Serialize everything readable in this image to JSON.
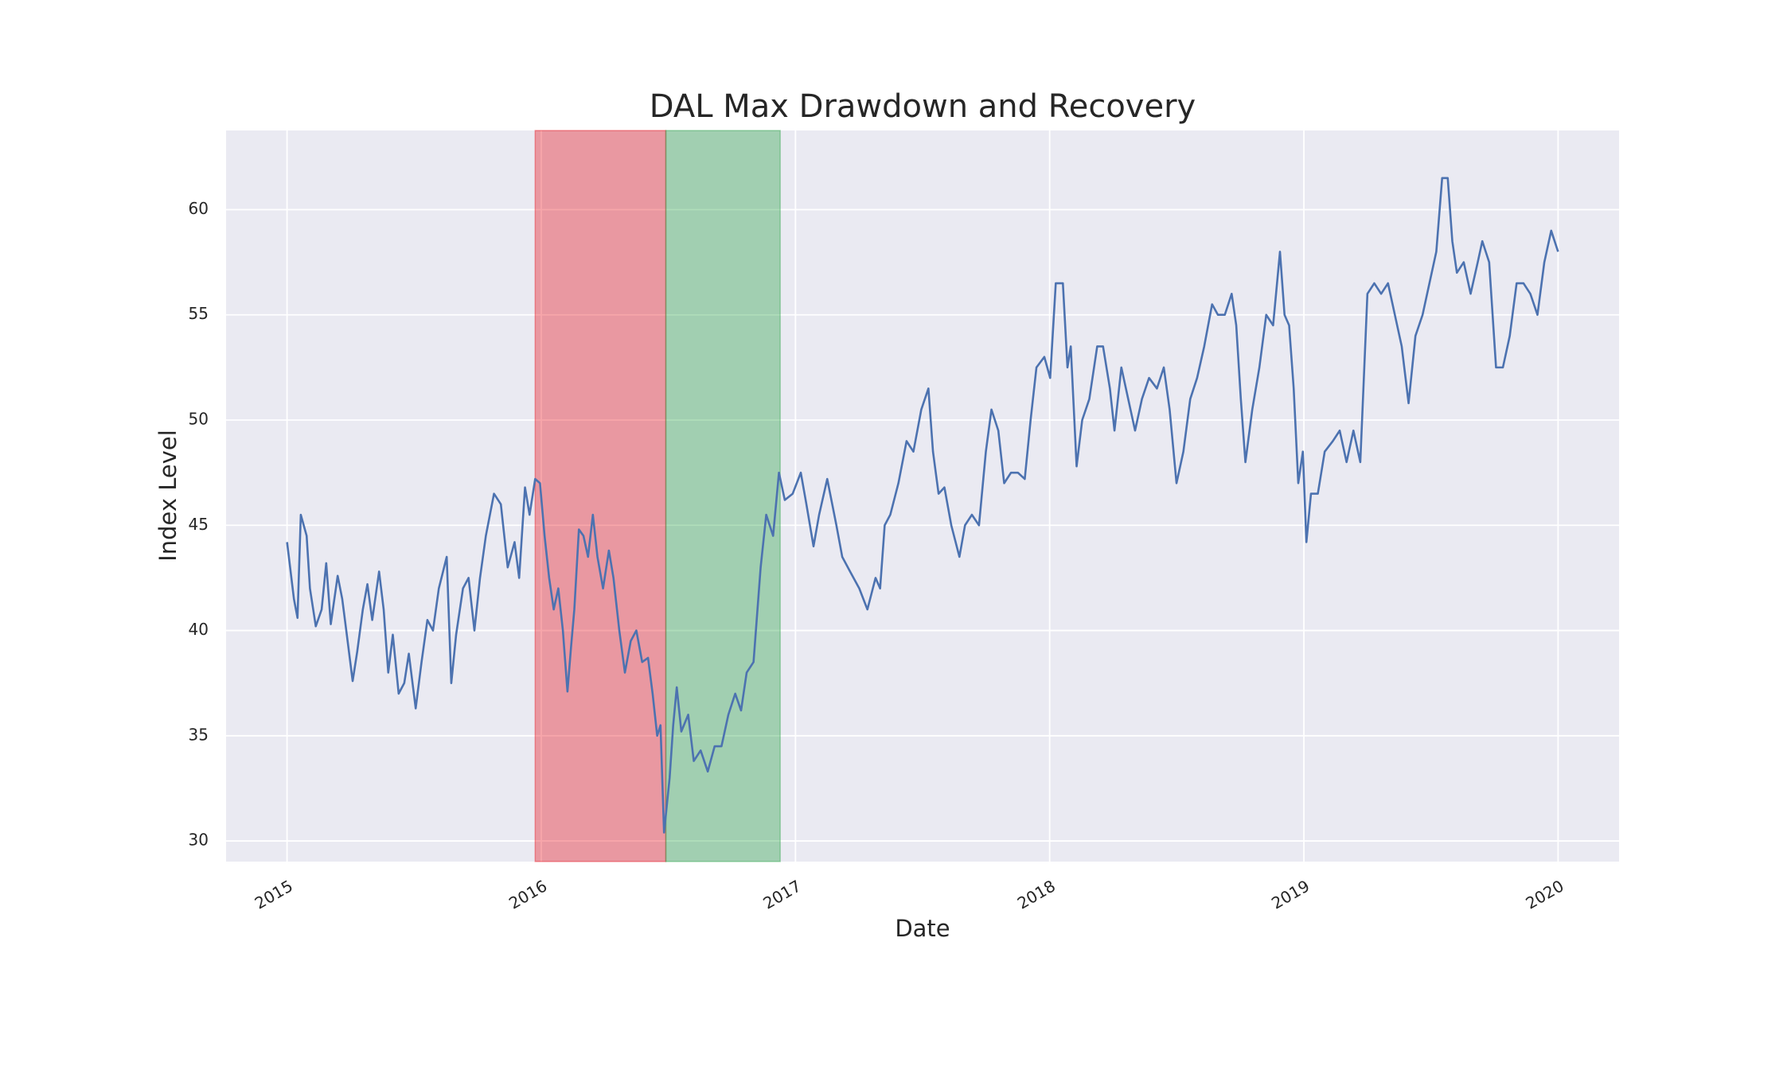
{
  "chart_data": {
    "type": "line",
    "title": "DAL Max Drawdown and Recovery",
    "xlabel": "Date",
    "ylabel": "Index Level",
    "x": [
      2015.0,
      2015.027,
      2015.041,
      2015.054,
      2015.077,
      2015.09,
      2015.113,
      2015.136,
      2015.154,
      2015.172,
      2015.199,
      2015.217,
      2015.235,
      2015.258,
      2015.276,
      2015.298,
      2015.316,
      2015.335,
      2015.362,
      2015.38,
      2015.398,
      2015.416,
      2015.439,
      2015.461,
      2015.479,
      2015.506,
      2015.529,
      2015.552,
      2015.574,
      2015.597,
      2015.628,
      2015.646,
      2015.665,
      2015.692,
      2015.714,
      2015.737,
      2015.759,
      2015.782,
      2015.814,
      2015.841,
      2015.868,
      2015.895,
      2015.913,
      2015.936,
      2015.954,
      2015.976,
      2015.995,
      2016.013,
      2016.031,
      2016.049,
      2016.067,
      2016.085,
      2016.103,
      2016.117,
      2016.13,
      2016.148,
      2016.166,
      2016.184,
      2016.203,
      2016.221,
      2016.243,
      2016.266,
      2016.284,
      2016.307,
      2016.329,
      2016.352,
      2016.374,
      2016.397,
      2016.42,
      2016.438,
      2016.456,
      2016.469,
      2016.483,
      2016.505,
      2016.519,
      2016.533,
      2016.551,
      2016.578,
      2016.6,
      2016.627,
      2016.655,
      2016.682,
      2016.709,
      2016.736,
      2016.763,
      2016.786,
      2016.808,
      2016.835,
      2016.863,
      2016.885,
      2016.912,
      2016.935,
      2016.958,
      2016.989,
      2017.021,
      2017.043,
      2017.071,
      2017.093,
      2017.125,
      2017.161,
      2017.184,
      2017.215,
      2017.251,
      2017.283,
      2017.315,
      2017.333,
      2017.351,
      2017.373,
      2017.405,
      2017.437,
      2017.464,
      2017.495,
      2017.523,
      2017.541,
      2017.563,
      2017.586,
      2017.613,
      2017.645,
      2017.667,
      2017.694,
      2017.722,
      2017.749,
      2017.771,
      2017.798,
      2017.821,
      2017.848,
      2017.875,
      2017.902,
      2017.925,
      2017.948,
      2017.979,
      2018.002,
      2018.024,
      2018.052,
      2018.07,
      2018.083,
      2018.106,
      2018.128,
      2018.156,
      2018.187,
      2018.21,
      2018.237,
      2018.255,
      2018.282,
      2018.309,
      2018.336,
      2018.363,
      2018.391,
      2018.422,
      2018.449,
      2018.472,
      2018.499,
      2018.526,
      2018.553,
      2018.58,
      2018.608,
      2018.639,
      2018.662,
      2018.689,
      2018.716,
      2018.734,
      2018.752,
      2018.77,
      2018.797,
      2018.825,
      2018.852,
      2018.879,
      2018.906,
      2018.924,
      2018.942,
      2018.96,
      2018.978,
      2018.996,
      2019.01,
      2019.028,
      2019.055,
      2019.082,
      2019.114,
      2019.141,
      2019.168,
      2019.195,
      2019.222,
      2019.25,
      2019.277,
      2019.304,
      2019.331,
      2019.358,
      2019.385,
      2019.412,
      2019.439,
      2019.467,
      2019.494,
      2019.521,
      2019.544,
      2019.566,
      2019.584,
      2019.602,
      2019.629,
      2019.656,
      2019.684,
      2019.702,
      2019.729,
      2019.756,
      2019.783,
      2019.81,
      2019.837,
      2019.864,
      2019.891,
      2019.919,
      2019.946,
      2019.973,
      2020.0
    ],
    "series": [
      {
        "color": "#4c72b0",
        "values": [
          44.2,
          41.5,
          40.6,
          45.5,
          44.5,
          42.0,
          40.2,
          41.0,
          43.2,
          40.3,
          42.6,
          41.5,
          39.8,
          37.6,
          39.0,
          41.0,
          42.2,
          40.5,
          42.8,
          41.0,
          38.0,
          39.8,
          37.0,
          37.5,
          38.9,
          36.3,
          38.5,
          40.5,
          40.0,
          42.0,
          43.5,
          37.5,
          39.8,
          42.0,
          42.5,
          40.0,
          42.5,
          44.5,
          46.5,
          46.0,
          43.0,
          44.2,
          42.5,
          46.8,
          45.5,
          47.2,
          47.0,
          44.5,
          42.5,
          41.0,
          42.0,
          40.0,
          37.1,
          39.2,
          41.0,
          44.8,
          44.5,
          43.5,
          45.5,
          43.5,
          42.0,
          43.8,
          42.5,
          40.0,
          38.0,
          39.5,
          40.0,
          38.5,
          38.7,
          37.0,
          35.0,
          35.5,
          30.4,
          33.0,
          35.5,
          37.3,
          35.2,
          36.0,
          33.8,
          34.3,
          33.3,
          34.5,
          34.5,
          36.0,
          37.0,
          36.2,
          38.0,
          38.5,
          43.0,
          45.5,
          44.5,
          47.5,
          46.2,
          46.5,
          47.5,
          46.0,
          44.0,
          45.5,
          47.2,
          45.0,
          43.5,
          42.8,
          42.0,
          41.0,
          42.5,
          42.0,
          45.0,
          45.5,
          47.0,
          49.0,
          48.5,
          50.5,
          51.5,
          48.5,
          46.5,
          46.8,
          45.0,
          43.5,
          45.0,
          45.5,
          45.0,
          48.5,
          50.5,
          49.5,
          47.0,
          47.5,
          47.5,
          47.2,
          50.0,
          52.5,
          53.0,
          52.0,
          56.5,
          56.5,
          52.5,
          53.5,
          47.8,
          50.0,
          51.0,
          53.5,
          53.5,
          51.5,
          49.5,
          52.5,
          51.0,
          49.5,
          51.0,
          52.0,
          51.5,
          52.5,
          50.5,
          47.0,
          48.5,
          51.0,
          52.0,
          53.5,
          55.5,
          55.0,
          55.0,
          56.0,
          54.5,
          51.0,
          48.0,
          50.5,
          52.5,
          55.0,
          54.5,
          58.0,
          55.0,
          54.5,
          51.5,
          47.0,
          48.5,
          44.2,
          46.5,
          46.5,
          48.5,
          49.0,
          49.5,
          48.0,
          49.5,
          48.0,
          56.0,
          56.5,
          56.0,
          56.5,
          55.0,
          53.5,
          50.8,
          54.0,
          55.0,
          56.5,
          58.0,
          61.5,
          61.5,
          58.5,
          57.0,
          57.5,
          56.0,
          57.5,
          58.5,
          57.5,
          52.5,
          52.5,
          54.0,
          56.5,
          56.5,
          56.0,
          55.0,
          57.5,
          59.0,
          58.0
        ]
      }
    ],
    "spans": [
      {
        "start": 2015.976,
        "end": 2016.49,
        "color": "#e8000b"
      },
      {
        "start": 2016.49,
        "end": 2016.94,
        "color": "#1a9e3a"
      }
    ],
    "span_alpha": 0.35,
    "xlim": [
      2014.76,
      2020.24
    ],
    "xticks": [
      2015,
      2016,
      2017,
      2018,
      2019,
      2020
    ],
    "ylim": [
      29.02,
      63.76
    ],
    "yticks": [
      30,
      35,
      40,
      45,
      50,
      55,
      60
    ],
    "grid": true
  }
}
